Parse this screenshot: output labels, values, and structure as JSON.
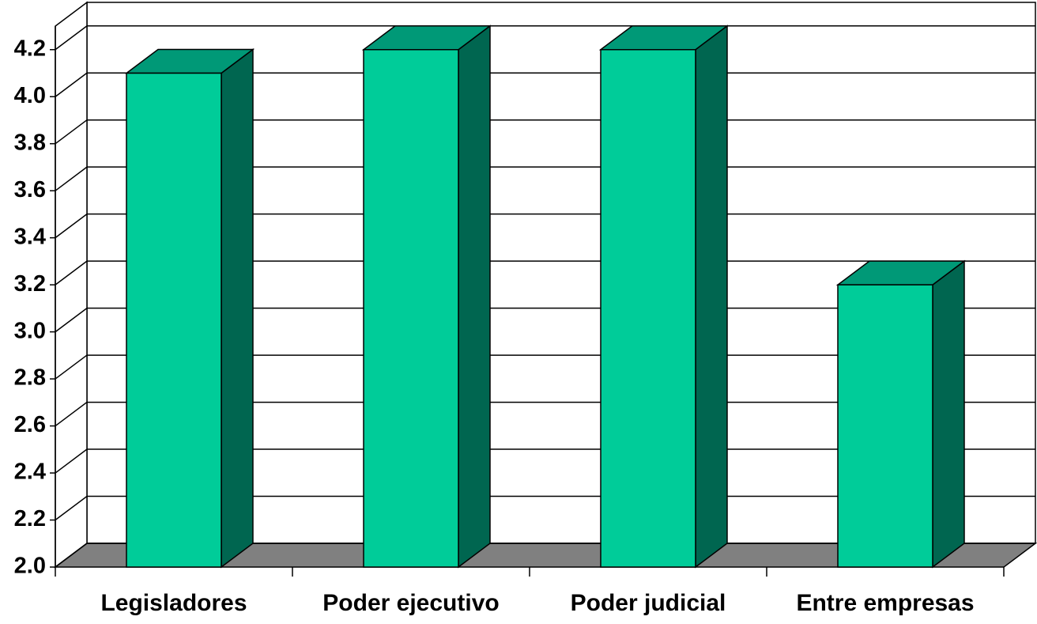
{
  "chart_data": {
    "type": "bar3d",
    "categories": [
      "Legisladores",
      "Poder ejecutivo",
      "Poder judicial",
      "Entre empresas"
    ],
    "values": [
      4.1,
      4.2,
      4.2,
      3.2
    ],
    "color": "#00cc99",
    "ylim": [
      2.0,
      4.3
    ],
    "yticks": [
      {
        "value": 2.0,
        "label": "2.0"
      },
      {
        "value": 2.2,
        "label": "2.2"
      },
      {
        "value": 2.4,
        "label": "2.4"
      },
      {
        "value": 2.6,
        "label": "2.6"
      },
      {
        "value": 2.8,
        "label": "2.8"
      },
      {
        "value": 3.0,
        "label": "3.0"
      },
      {
        "value": 3.2,
        "label": "3.2"
      },
      {
        "value": 3.4,
        "label": "3.4"
      },
      {
        "value": 3.6,
        "label": "3.6"
      },
      {
        "value": 3.8,
        "label": "3.8"
      },
      {
        "value": 4.0,
        "label": "4.0"
      },
      {
        "value": 4.2,
        "label": "4.2"
      }
    ],
    "grid": true
  }
}
